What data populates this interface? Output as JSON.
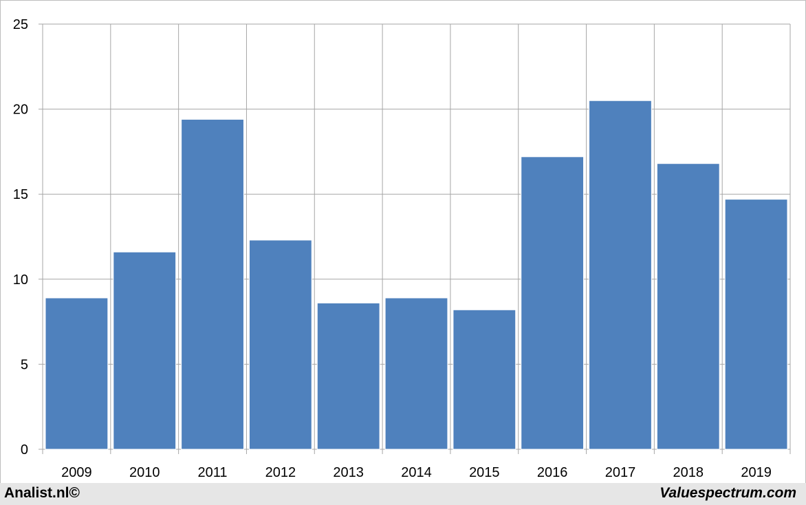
{
  "chart_data": {
    "type": "bar",
    "categories": [
      "2009",
      "2010",
      "2011",
      "2012",
      "2013",
      "2014",
      "2015",
      "2016",
      "2017",
      "2018",
      "2019"
    ],
    "values": [
      8.9,
      11.6,
      19.4,
      12.3,
      8.6,
      8.9,
      8.2,
      17.2,
      20.5,
      16.8,
      14.7
    ],
    "title": "",
    "xlabel": "",
    "ylabel": "",
    "ylim": [
      0,
      25
    ],
    "yticks": [
      "0",
      "5",
      "10",
      "15",
      "20",
      "25"
    ],
    "grid": true,
    "bar_color": "#4f81bd"
  },
  "footer": {
    "left": "Analist.nl©",
    "right": "Valuespectrum.com"
  }
}
